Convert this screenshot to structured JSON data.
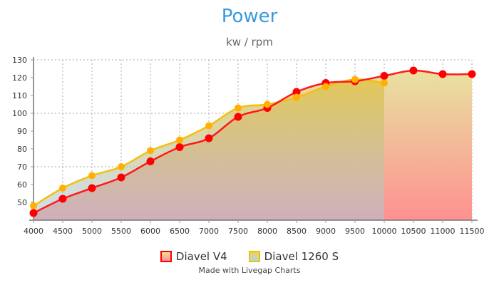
{
  "header": {
    "title": "Power",
    "subtitle": "kw / rpm"
  },
  "legend": [
    {
      "label": "Diavel V4",
      "border": "#ff0000",
      "fill_top": "#e8e2a0",
      "fill_bottom": "#ff9090"
    },
    {
      "label": "Diavel 1260 S",
      "border": "#f5c200",
      "fill_top": "#f0d060",
      "fill_bottom": "#add8e6"
    }
  ],
  "credit": "Made with Livegap Charts",
  "chart_data": {
    "type": "area",
    "title": "Power",
    "subtitle": "kw / rpm",
    "xlabel": "",
    "ylabel": "",
    "categories": [
      4000,
      4500,
      5000,
      5500,
      6000,
      6500,
      7000,
      7500,
      8000,
      8500,
      9000,
      9500,
      10000,
      10500,
      11000,
      11500
    ],
    "series": [
      {
        "name": "Diavel V4",
        "color": "#ff0000",
        "values": [
          44,
          52,
          58,
          64,
          73,
          81,
          86,
          98,
          103,
          112,
          117,
          118,
          121,
          124,
          122,
          122
        ]
      },
      {
        "name": "Diavel 1260 S",
        "color": "#f5b800",
        "values": [
          48,
          58,
          65,
          70,
          79,
          85,
          93,
          103,
          105,
          109,
          115,
          119,
          117,
          null,
          null,
          null
        ]
      }
    ],
    "ylim": [
      40,
      130
    ],
    "yticks": [
      50,
      60,
      70,
      80,
      90,
      100,
      110,
      120,
      130
    ],
    "grid": {
      "horizontal": [
        70,
        100,
        130
      ],
      "vertical": "every category"
    },
    "legend_position": "bottom"
  }
}
